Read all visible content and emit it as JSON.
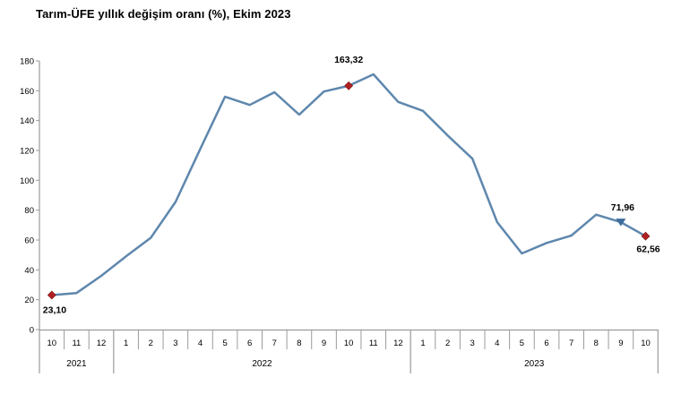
{
  "title": "Tarım-ÜFE yıllık değişim oranı (%), Ekim 2023",
  "chart_data": {
    "type": "line",
    "title": "Tarım-ÜFE yıllık değişim oranı (%), Ekim 2023",
    "xlabel": "",
    "ylabel": "",
    "ylim": [
      0,
      180
    ],
    "y_ticks": [
      0,
      20,
      40,
      60,
      80,
      100,
      120,
      140,
      160,
      180
    ],
    "grid": false,
    "legend": false,
    "month_labels": [
      "10",
      "11",
      "12",
      "1",
      "2",
      "3",
      "4",
      "5",
      "6",
      "7",
      "8",
      "9",
      "10",
      "11",
      "12",
      "1",
      "2",
      "3",
      "4",
      "5",
      "6",
      "7",
      "8",
      "9",
      "10"
    ],
    "year_groups": [
      {
        "label": "2021",
        "count": 3
      },
      {
        "label": "2022",
        "count": 12
      },
      {
        "label": "2023",
        "count": 10
      }
    ],
    "values": [
      23.1,
      24.5,
      36,
      49,
      61.5,
      85.5,
      121,
      156,
      150.5,
      159,
      144,
      159.5,
      163.32,
      171,
      152.5,
      146.5,
      130,
      114.5,
      72,
      51,
      58,
      63,
      77,
      71.96,
      62.56
    ],
    "annotations": [
      {
        "index": 0,
        "label": "23,10",
        "position": "below-left",
        "marker": "diamond"
      },
      {
        "index": 12,
        "label": "163,32",
        "position": "above-far",
        "marker": "diamond"
      },
      {
        "index": 23,
        "label": "71,96",
        "position": "above",
        "marker": "triangle-down"
      },
      {
        "index": 24,
        "label": "62,56",
        "position": "below",
        "marker": "diamond"
      }
    ],
    "colors": {
      "line": "#5e87ad",
      "marker_red": "#b02020",
      "marker_blue": "#3c6d9b",
      "axis": "#9b9b9b",
      "text": "#000000"
    }
  }
}
